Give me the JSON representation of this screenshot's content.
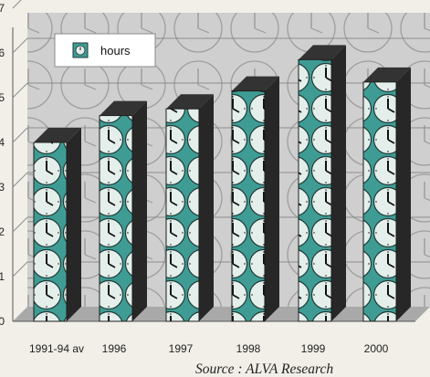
{
  "chart_data": {
    "type": "bar",
    "categories": [
      "1991-94 av",
      "1996",
      "1997",
      "1998",
      "1999",
      "2000"
    ],
    "series": [
      {
        "name": "hours",
        "values": [
          4.0,
          4.6,
          4.75,
          5.15,
          5.85,
          5.35
        ]
      }
    ],
    "ylim": [
      0,
      7
    ],
    "yticks": [
      "0",
      "1",
      "2",
      "3",
      "4",
      "5",
      "6",
      "7"
    ],
    "title": "",
    "xlabel": "",
    "ylabel": "",
    "grid": true,
    "legend_position": "top-left",
    "source": "Source : ALVA Research",
    "colors": {
      "bar_face": "#dfece8",
      "bar_accent": "#3f9c94",
      "bar_side": "#272727",
      "bar_top": "#333333",
      "wall": "#cfcfcf",
      "floor": "#a9a9a9",
      "background": "#f1efe8"
    },
    "icons": {
      "legend": "clock-icon",
      "bar_pattern": "clock-face-pattern"
    }
  }
}
